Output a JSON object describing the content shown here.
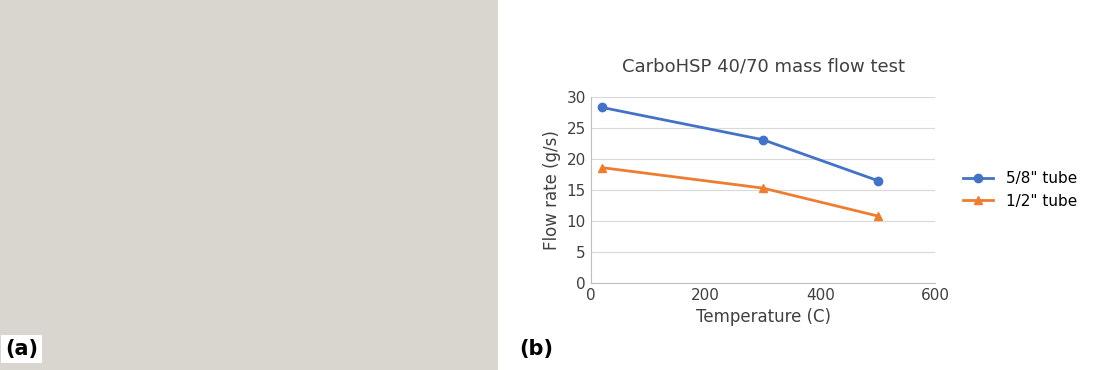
{
  "chart_data": {
    "type": "line",
    "title": "CarboHSP 40/70 mass flow test",
    "x_label": "Temperature (C)",
    "y_label": "Flow rate (g/s)",
    "x": [
      20,
      300,
      500
    ],
    "series": [
      {
        "name": "5/8\" tube",
        "color": "#4472c4",
        "marker": "circle",
        "line_style": "solid",
        "values": [
          28.3,
          23.1,
          16.5
        ]
      },
      {
        "name": "1/2\" tube",
        "color": "#ed7d31",
        "marker": "triangle",
        "line_style": "solid",
        "values": [
          18.6,
          15.3,
          10.8
        ]
      }
    ],
    "xlim": [
      0,
      600
    ],
    "xticks": [
      0,
      200,
      400,
      600
    ],
    "ylim": [
      0,
      30
    ],
    "yticks": [
      0,
      5,
      10,
      15,
      20,
      25,
      30
    ],
    "grid": true,
    "legend": "right"
  },
  "panel_labels": [
    "(a)",
    "(b)"
  ]
}
